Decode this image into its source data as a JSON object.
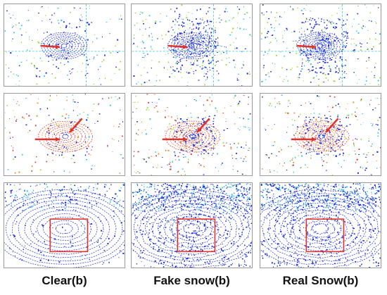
{
  "captions": [
    "Clear(b)",
    "Fake snow(b)",
    "Real Snow(b)"
  ],
  "colors": {
    "arrow": "#e0332b",
    "box": "#e0332b",
    "point_blue": "#1e2fd6",
    "point_cyan": "#3fc4e8",
    "point_green": "#9fd84a",
    "point_red": "#e0332b",
    "point_orange": "#f08a2a"
  },
  "rows": [
    {
      "type": "depth-blue",
      "annotation": "single-arrow"
    },
    {
      "type": "height-jet",
      "annotation": "double-arrow"
    },
    {
      "type": "bev-dense",
      "annotation": "box"
    }
  ]
}
